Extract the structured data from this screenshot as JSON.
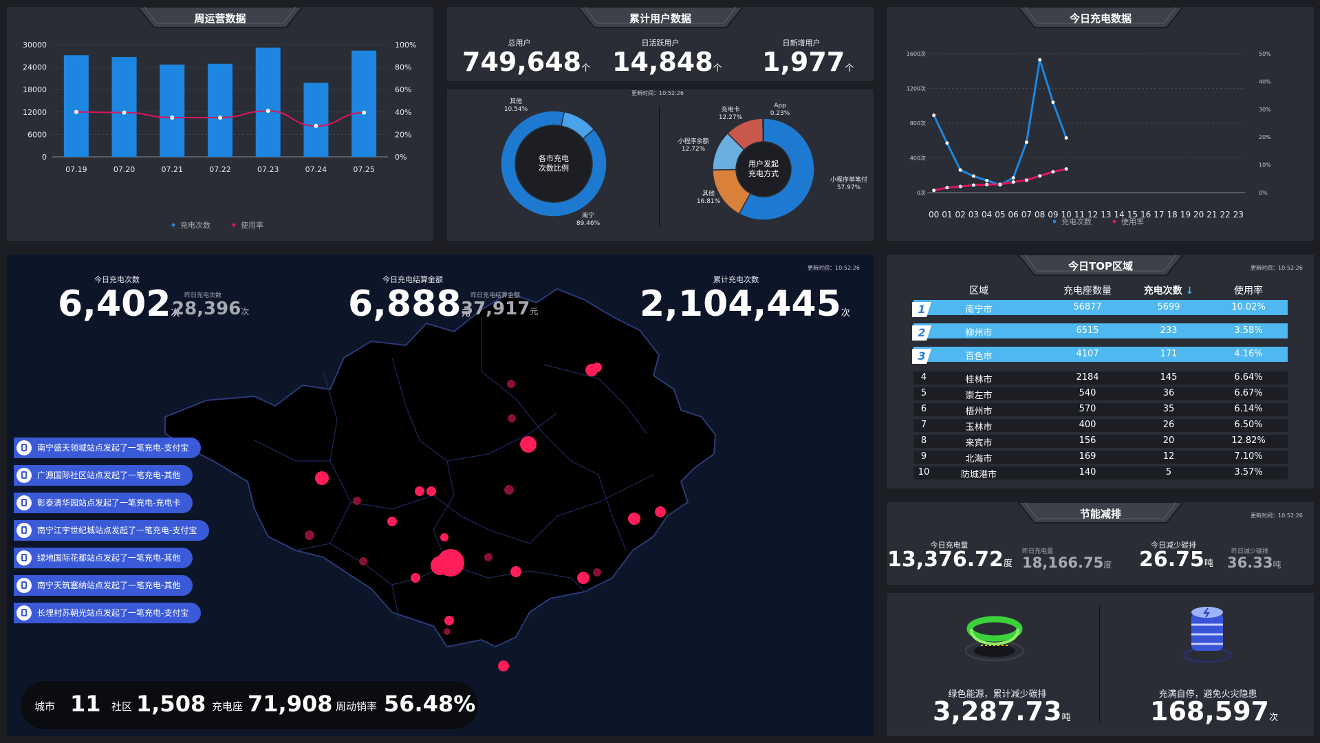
{
  "weekly": {
    "title": "周运营数据",
    "categories": [
      "07.19",
      "07.20",
      "07.21",
      "07.22",
      "07.23",
      "07.24",
      "07.25"
    ],
    "left_ticks": [
      "30000",
      "24000",
      "18000",
      "12000",
      "6000",
      "0"
    ],
    "right_ticks": [
      "100%",
      "80%",
      "60%",
      "40%",
      "20%",
      "0%"
    ],
    "legend": [
      "充电次数",
      "使用率"
    ]
  },
  "users": {
    "title": "累计用户数据",
    "total_label": "总用户",
    "total": "749,648",
    "total_unit": "个",
    "dau_label": "日活跃用户",
    "dau": "14,848",
    "dau_unit": "个",
    "new_label": "日新增用户",
    "new": "1,977",
    "new_unit": "个",
    "update": "更新时间：10:52:26",
    "donut1_center": [
      "各市充电",
      "次数比例"
    ],
    "donut1_labels": [
      [
        "其他",
        "10.54%"
      ],
      [
        "南宁",
        "89.46%"
      ]
    ],
    "donut2_center": [
      "用户发起",
      "充电方式"
    ],
    "donut2_labels": [
      [
        "App",
        "0.23%"
      ],
      [
        "小程序单笔付",
        "57.97%"
      ],
      [
        "其他",
        "16.81%"
      ],
      [
        "小程序余额",
        "12.72%"
      ],
      [
        "充电卡",
        "12.27%"
      ]
    ]
  },
  "today_charge": {
    "title": "今日充电数据",
    "left_ticks": [
      "1600次",
      "1200次",
      "800次",
      "400次",
      "0次"
    ],
    "right_ticks": [
      "50%",
      "40%",
      "30%",
      "20%",
      "10%",
      "0%"
    ],
    "hours": [
      "00",
      "01",
      "02",
      "03",
      "04",
      "05",
      "06",
      "07",
      "08",
      "09",
      "10",
      "11",
      "12",
      "13",
      "14",
      "15",
      "16",
      "17",
      "18",
      "19",
      "20",
      "21",
      "22",
      "23"
    ],
    "legend": [
      "充电次数",
      "使用率"
    ]
  },
  "map": {
    "update": "更新时间：10:52:26",
    "today_label": "今日充电次数",
    "today": "6,402",
    "today_unit": "次",
    "yday_label": "昨日充电次数",
    "yday": "28,396",
    "yday_unit": "次",
    "amount_label": "今日充电结算金额",
    "amount": "6,888",
    "amount_unit": "元",
    "yamount_label": "昨日充电结算金额",
    "yamount": "37,917",
    "yamount_unit": "元",
    "total_label": "累计充电次数",
    "total": "2,104,445",
    "total_unit": "次",
    "notices": [
      "南宁盛天领域站点发起了一笔充电-支付宝",
      "广源国际社区站点发起了一笔充电-其他",
      "彰泰清华园站点发起了一笔充电-充电卡",
      "南宁江宇世纪城站点发起了一笔充电-支付宝",
      "绿地国际花都站点发起了一笔充电-其他",
      "南宁天筑塞纳站点发起了一笔充电-其他",
      "长埋村苏朝光站点发起了一笔充电-支付宝"
    ],
    "city_label": "城市",
    "city": "11",
    "community_label": "社区",
    "community": "1,508",
    "seat_label": "充电座",
    "seat": "71,908",
    "rate_label": "周动销率",
    "rate": "56.48%"
  },
  "top": {
    "title": "今日TOP区域",
    "update": "更新时间：10:52:26",
    "headers": [
      "区域",
      "充电座数量",
      "充电次数",
      "使用率"
    ],
    "rows": [
      [
        "1",
        "南宁市",
        "56877",
        "5699",
        "10.02%"
      ],
      [
        "2",
        "柳州市",
        "6515",
        "233",
        "3.58%"
      ],
      [
        "3",
        "百色市",
        "4107",
        "171",
        "4.16%"
      ],
      [
        "4",
        "桂林市",
        "2184",
        "145",
        "6.64%"
      ],
      [
        "5",
        "崇左市",
        "540",
        "36",
        "6.67%"
      ],
      [
        "6",
        "梧州市",
        "570",
        "35",
        "6.14%"
      ],
      [
        "7",
        "玉林市",
        "400",
        "26",
        "6.50%"
      ],
      [
        "8",
        "来宾市",
        "156",
        "20",
        "12.82%"
      ],
      [
        "9",
        "北海市",
        "169",
        "12",
        "7.10%"
      ],
      [
        "10",
        "防城港市",
        "140",
        "5",
        "3.57%"
      ]
    ]
  },
  "energy": {
    "title": "节能减排",
    "update": "更新时间：10:52:26",
    "today_label": "今日充电量",
    "today": "13,376.72",
    "today_unit": "度",
    "yday_label": "昨日充电量",
    "yday": "18,166.75",
    "yday_unit": "度",
    "carbon_label": "今日减少碳排",
    "carbon": "26.75",
    "carbon_unit": "吨",
    "ycarbon_label": "昨日减少碳排",
    "ycarbon": "36.33",
    "ycarbon_unit": "吨",
    "green_label": "绿色能源，累计减少碳排",
    "green": "3,287.73",
    "green_unit": "吨",
    "safe_label": "充满自停，避免火灾隐患",
    "safe": "168,597",
    "safe_unit": "次"
  },
  "chart_data": [
    {
      "type": "bar",
      "title": "周运营数据",
      "categories": [
        "07.19",
        "07.20",
        "07.21",
        "07.22",
        "07.23",
        "07.24",
        "07.25"
      ],
      "ylim": [
        0,
        30000
      ],
      "y2lim": [
        0,
        100
      ],
      "series": [
        {
          "name": "充电次数",
          "type": "bar",
          "values": [
            27200,
            26700,
            24700,
            24900,
            29200,
            19800,
            28400
          ]
        },
        {
          "name": "使用率",
          "type": "line",
          "axis": "right",
          "values": [
            40,
            39.5,
            35,
            35,
            41,
            27.5,
            39.5
          ]
        }
      ]
    },
    {
      "type": "pie",
      "title": "各市充电次数比例",
      "labels": [
        "南宁",
        "其他"
      ],
      "values": [
        89.46,
        10.54
      ]
    },
    {
      "type": "pie",
      "title": "用户发起充电方式",
      "labels": [
        "小程序单笔付",
        "其他",
        "小程序余额",
        "充电卡",
        "App"
      ],
      "values": [
        57.97,
        16.81,
        12.72,
        12.27,
        0.23
      ]
    },
    {
      "type": "line",
      "title": "今日充电数据",
      "x": [
        "00",
        "01",
        "02",
        "03",
        "04",
        "05",
        "06",
        "07",
        "08",
        "09",
        "10"
      ],
      "ylim": [
        0,
        1600
      ],
      "y2lim": [
        0,
        50
      ],
      "series": [
        {
          "name": "充电次数",
          "values": [
            890,
            570,
            260,
            190,
            140,
            90,
            170,
            580,
            1530,
            1040,
            630
          ]
        },
        {
          "name": "使用率",
          "axis": "right",
          "values": [
            0.8,
            1.8,
            2.2,
            2.7,
            2.9,
            3.0,
            3.8,
            4.5,
            6.0,
            7.5,
            8.5
          ]
        }
      ]
    }
  ]
}
